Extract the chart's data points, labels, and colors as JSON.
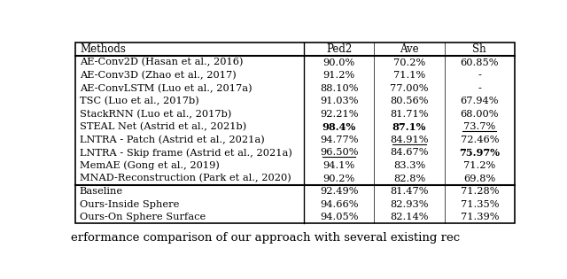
{
  "headers": [
    "Methods",
    "Ped2",
    "Ave",
    "Sh"
  ],
  "rows": [
    {
      "method": "AE-Conv2D (Hasan et al., 2016)",
      "ped2": "90.0%",
      "ave": "70.2%",
      "sh": "60.85%",
      "bold_ped2": false,
      "bold_ave": false,
      "bold_sh": false,
      "ul_ped2": false,
      "ul_ave": false,
      "ul_sh": false
    },
    {
      "method": "AE-Conv3D (Zhao et al., 2017)",
      "ped2": "91.2%",
      "ave": "71.1%",
      "sh": "-",
      "bold_ped2": false,
      "bold_ave": false,
      "bold_sh": false,
      "ul_ped2": false,
      "ul_ave": false,
      "ul_sh": false
    },
    {
      "method": "AE-ConvLSTM (Luo et al., 2017a)",
      "ped2": "88.10%",
      "ave": "77.00%",
      "sh": "-",
      "bold_ped2": false,
      "bold_ave": false,
      "bold_sh": false,
      "ul_ped2": false,
      "ul_ave": false,
      "ul_sh": false
    },
    {
      "method": "TSC (Luo et al., 2017b)",
      "ped2": "91.03%",
      "ave": "80.56%",
      "sh": "67.94%",
      "bold_ped2": false,
      "bold_ave": false,
      "bold_sh": false,
      "ul_ped2": false,
      "ul_ave": false,
      "ul_sh": false
    },
    {
      "method": "StackRNN (Luo et al., 2017b)",
      "ped2": "92.21%",
      "ave": "81.71%",
      "sh": "68.00%",
      "bold_ped2": false,
      "bold_ave": false,
      "bold_sh": false,
      "ul_ped2": false,
      "ul_ave": false,
      "ul_sh": false
    },
    {
      "method": "STEAL Net (Astrid et al., 2021b)",
      "ped2": "98.4%",
      "ave": "87.1%",
      "sh": "73.7%",
      "bold_ped2": true,
      "bold_ave": true,
      "bold_sh": false,
      "ul_ped2": false,
      "ul_ave": false,
      "ul_sh": true
    },
    {
      "method": "LNTRA - Patch (Astrid et al., 2021a)",
      "ped2": "94.77%",
      "ave": "84.91%",
      "sh": "72.46%",
      "bold_ped2": false,
      "bold_ave": false,
      "bold_sh": false,
      "ul_ped2": false,
      "ul_ave": true,
      "ul_sh": false
    },
    {
      "method": "LNTRA - Skip frame (Astrid et al., 2021a)",
      "ped2": "96.50%",
      "ave": "84.67%",
      "sh": "75.97%",
      "bold_ped2": false,
      "bold_ave": false,
      "bold_sh": true,
      "ul_ped2": true,
      "ul_ave": false,
      "ul_sh": false
    },
    {
      "method": "MemAE (Gong et al., 2019)",
      "ped2": "94.1%",
      "ave": "83.3%",
      "sh": "71.2%",
      "bold_ped2": false,
      "bold_ave": false,
      "bold_sh": false,
      "ul_ped2": false,
      "ul_ave": false,
      "ul_sh": false
    },
    {
      "method": "MNAD-Reconstruction (Park et al., 2020)",
      "ped2": "90.2%",
      "ave": "82.8%",
      "sh": "69.8%",
      "bold_ped2": false,
      "bold_ave": false,
      "bold_sh": false,
      "ul_ped2": false,
      "ul_ave": false,
      "ul_sh": false
    }
  ],
  "our_rows": [
    {
      "method": "Baseline",
      "ped2": "92.49%",
      "ave": "81.47%",
      "sh": "71.28%"
    },
    {
      "method": "Ours-Inside Sphere",
      "ped2": "94.66%",
      "ave": "82.93%",
      "sh": "71.35%"
    },
    {
      "method": "Ours-On Sphere Surface",
      "ped2": "94.05%",
      "ave": "82.14%",
      "sh": "71.39%"
    }
  ],
  "caption": "erformance comparison of our approach with several existing rec",
  "bg_color": "#ffffff",
  "font_size": 8.5
}
